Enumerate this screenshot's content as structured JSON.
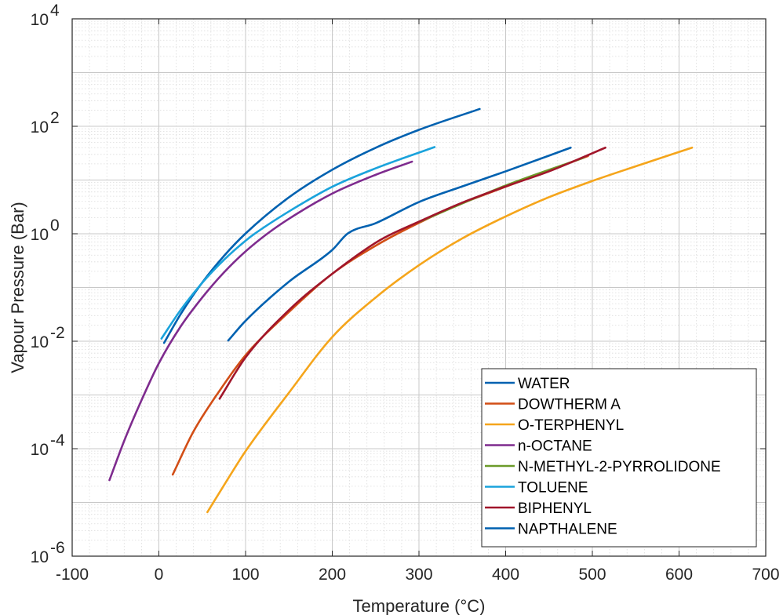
{
  "chart_data": {
    "type": "line",
    "title": "",
    "xlabel": "Temperature (°C)",
    "ylabel": "Vapour Pressure (Bar)",
    "xlim": [
      -100,
      700
    ],
    "ylim": [
      1e-06,
      10000.0
    ],
    "yscale": "log",
    "grid": true,
    "minor_grid": true,
    "legend_position": "bottom-right",
    "x_ticks": [
      "-100",
      "0",
      "100",
      "200",
      "300",
      "400",
      "500",
      "600",
      "700"
    ],
    "y_ticks": [
      {
        "base": "10",
        "exp": "-6"
      },
      {
        "base": "10",
        "exp": "-4"
      },
      {
        "base": "10",
        "exp": "-2"
      },
      {
        "base": "10",
        "exp": "0"
      },
      {
        "base": "10",
        "exp": "2"
      },
      {
        "base": "10",
        "exp": "4"
      }
    ],
    "series": [
      {
        "name": "WATER",
        "color": "#0061b0",
        "x": [
          6,
          25,
          50,
          75,
          100,
          150,
          200,
          250,
          300,
          370
        ],
        "y": [
          0.0093,
          0.0317,
          0.1235,
          0.3855,
          1.013,
          4.76,
          15.55,
          39.8,
          85.9,
          210
        ]
      },
      {
        "name": "DOWTHERM A",
        "color": "#d24e16",
        "x": [
          16,
          40,
          70,
          100,
          150,
          200,
          250,
          300,
          350,
          400,
          450,
          495
        ],
        "y": [
          3.3e-05,
          0.00021,
          0.0012,
          0.0055,
          0.035,
          0.18,
          0.6,
          1.6,
          3.7,
          7.5,
          15,
          28
        ]
      },
      {
        "name": "O-TERPHENYL",
        "color": "#f5a51b",
        "x": [
          56,
          80,
          100,
          150,
          200,
          250,
          300,
          350,
          400,
          450,
          500,
          550,
          615
        ],
        "y": [
          6.6e-06,
          2.8e-05,
          9e-05,
          0.0011,
          0.012,
          0.065,
          0.26,
          0.82,
          2.1,
          4.8,
          9.6,
          18,
          40
        ]
      },
      {
        "name": "n-OCTANE",
        "color": "#7e2b8e",
        "x": [
          -57,
          -40,
          -20,
          0,
          25,
          50,
          75,
          100,
          125,
          150,
          200,
          250,
          292
        ],
        "y": [
          2.6e-05,
          0.00014,
          0.0008,
          0.0039,
          0.0187,
          0.065,
          0.19,
          0.47,
          1.0,
          1.9,
          5.6,
          12.5,
          22
        ]
      },
      {
        "name": "N-METHYL-2-PYRROLIDONE",
        "color": "#6c9b2a",
        "x": [
          300,
          400,
          490
        ],
        "y": [
          1.66,
          7.9,
          26
        ]
      },
      {
        "name": "TOLUENE",
        "color": "#1aa3dc",
        "x": [
          3,
          25,
          50,
          75,
          100,
          111,
          150,
          200,
          250,
          318
        ],
        "y": [
          0.0112,
          0.0379,
          0.122,
          0.326,
          0.742,
          1.013,
          2.6,
          7.5,
          16.5,
          41
        ]
      },
      {
        "name": "BIPHENYL",
        "color": "#a1162b",
        "x": [
          70,
          100,
          150,
          200,
          255,
          300,
          350,
          400,
          450,
          515
        ],
        "y": [
          0.00085,
          0.005,
          0.038,
          0.18,
          0.76,
          1.68,
          3.8,
          7.6,
          14.5,
          40
        ]
      },
      {
        "name": "NAPTHALENE",
        "color": "#0061b0",
        "x": [
          80,
          100,
          150,
          200,
          218,
          250,
          300,
          350,
          400,
          475
        ],
        "y": [
          0.0103,
          0.024,
          0.128,
          0.5,
          1.013,
          1.57,
          3.9,
          7.6,
          14.5,
          40
        ]
      }
    ]
  }
}
